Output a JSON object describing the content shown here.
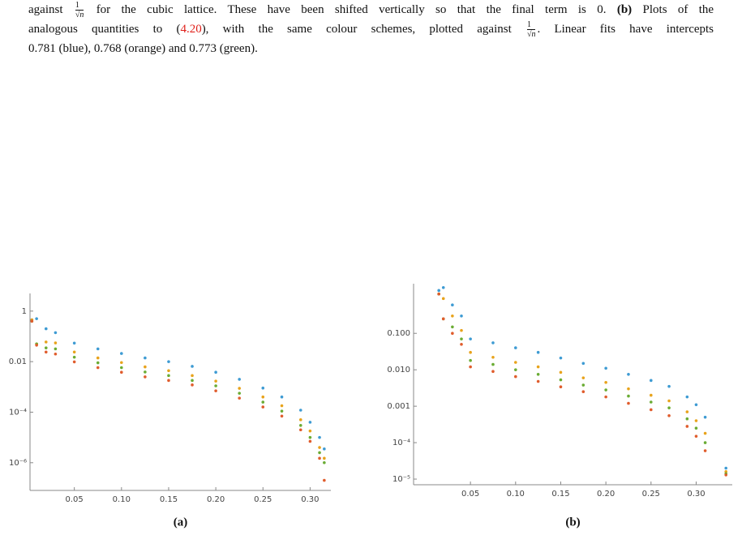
{
  "caption": {
    "line1": [
      "against",
      {
        "numerator": "1",
        "denominator": "√n"
      },
      "for the cubic lattice. These have been shifted vertically so that the final term is 0.",
      "(b)",
      "Plots of the"
    ],
    "line2": [
      "analogous quantities to (",
      "4.20",
      "), with the same colour schemes, plotted against",
      {
        "numerator": "1",
        "denominator": "√n"
      },
      ". Linear fits have intercepts"
    ],
    "line3": "0.781 (blue), 0.768 (orange) and 0.773 (green)."
  },
  "chart_data": [
    {
      "type": "scatter",
      "caption": "(a)",
      "log_y": true,
      "xlim": [
        0.003,
        0.322
      ],
      "ylim": [
        8e-08,
        5
      ],
      "xticks": [
        0.05,
        {
          "value": 0.1,
          "label": "0.10"
        },
        0.15,
        {
          "value": 0.2,
          "label": "0.20"
        },
        0.25,
        {
          "value": 0.3,
          "label": "0.30"
        }
      ],
      "yticks": [
        1,
        0.01,
        {
          "value": 0.0001,
          "label": "10⁻⁴"
        },
        {
          "value": 1e-06,
          "label": "10⁻⁶"
        }
      ],
      "x": [
        0.005,
        0.01,
        0.02,
        0.03,
        0.05,
        0.075,
        0.1,
        0.125,
        0.15,
        0.175,
        0.2,
        0.225,
        0.25,
        0.27,
        0.29,
        0.3,
        0.31,
        0.315
      ],
      "series": [
        {
          "color": "#3e9bd3",
          "values": [
            0.45,
            0.5,
            0.2,
            0.14,
            0.054,
            0.032,
            0.021,
            0.014,
            0.01,
            0.0065,
            0.0038,
            0.002,
            0.0009,
            0.0004,
            0.00012,
            4e-05,
            1e-05,
            3.5e-06
          ]
        },
        {
          "color": "#e8a31c",
          "values": [
            0.45,
            0.05,
            0.06,
            0.055,
            0.024,
            0.014,
            0.0092,
            0.0062,
            0.0044,
            0.0028,
            0.0017,
            0.00088,
            0.0004,
            0.00018,
            5e-05,
            1.8e-05,
            4e-06,
            1.5e-06
          ]
        },
        {
          "color": "#6aac34",
          "values": [
            0.4,
            0.05,
            0.035,
            0.032,
            0.015,
            0.009,
            0.0058,
            0.0039,
            0.0028,
            0.0018,
            0.0011,
            0.00056,
            0.00025,
            0.00011,
            3e-05,
            1e-05,
            2.5e-06,
            1e-06
          ]
        },
        {
          "color": "#e05d2d",
          "values": [
            0.4,
            0.045,
            0.024,
            0.02,
            0.0098,
            0.0058,
            0.0038,
            0.0025,
            0.0018,
            0.0012,
            0.0007,
            0.00036,
            0.00016,
            7e-05,
            2e-05,
            7e-06,
            1.5e-06,
            2e-07
          ]
        }
      ]
    },
    {
      "type": "scatter",
      "caption": "(b)",
      "log_y": true,
      "xlim": [
        -0.013,
        0.34
      ],
      "ylim": [
        7e-06,
        2.3
      ],
      "xticks": [
        0.05,
        {
          "value": 0.1,
          "label": "0.10"
        },
        0.15,
        {
          "value": 0.2,
          "label": "0.20"
        },
        0.25,
        {
          "value": 0.3,
          "label": "0.30"
        }
      ],
      "yticks": [
        {
          "value": 0.1,
          "label": "0.100"
        },
        {
          "value": 0.01,
          "label": "0.010"
        },
        0.001,
        {
          "value": 0.0001,
          "label": "10⁻⁴"
        },
        {
          "value": 1e-05,
          "label": "10⁻⁵"
        }
      ],
      "x": [
        0.015,
        0.02,
        0.03,
        0.04,
        0.05,
        0.075,
        0.1,
        0.125,
        0.15,
        0.175,
        0.2,
        0.225,
        0.25,
        0.27,
        0.29,
        0.3,
        0.31,
        0.333
      ],
      "series": [
        {
          "color": "#3e9bd3",
          "values": [
            1.5,
            1.8,
            0.6,
            0.3,
            0.07,
            0.055,
            0.04,
            0.03,
            0.021,
            0.015,
            0.011,
            0.0075,
            0.0051,
            0.0035,
            0.0018,
            0.0011,
            0.0005,
            2e-05
          ]
        },
        {
          "color": "#e8a31c",
          "values": [
            1.2,
            0.9,
            0.3,
            0.12,
            0.03,
            0.022,
            0.016,
            0.012,
            0.0085,
            0.006,
            0.0045,
            0.003,
            0.002,
            0.0014,
            0.0007,
            0.0004,
            0.00018,
            1.6e-05
          ]
        },
        {
          "color": "#6aac34",
          "values": [
            1.2,
            0.25,
            0.15,
            0.07,
            0.018,
            0.014,
            0.01,
            0.0075,
            0.0053,
            0.0038,
            0.0028,
            0.0019,
            0.0013,
            0.0009,
            0.00045,
            0.00025,
            0.0001,
            1.4e-05
          ]
        },
        {
          "color": "#e05d2d",
          "values": [
            1.2,
            0.25,
            0.1,
            0.05,
            0.012,
            0.009,
            0.0065,
            0.0048,
            0.0034,
            0.0025,
            0.0018,
            0.0012,
            0.0008,
            0.00055,
            0.00028,
            0.00015,
            6e-05,
            1.3e-05
          ]
        }
      ]
    }
  ]
}
